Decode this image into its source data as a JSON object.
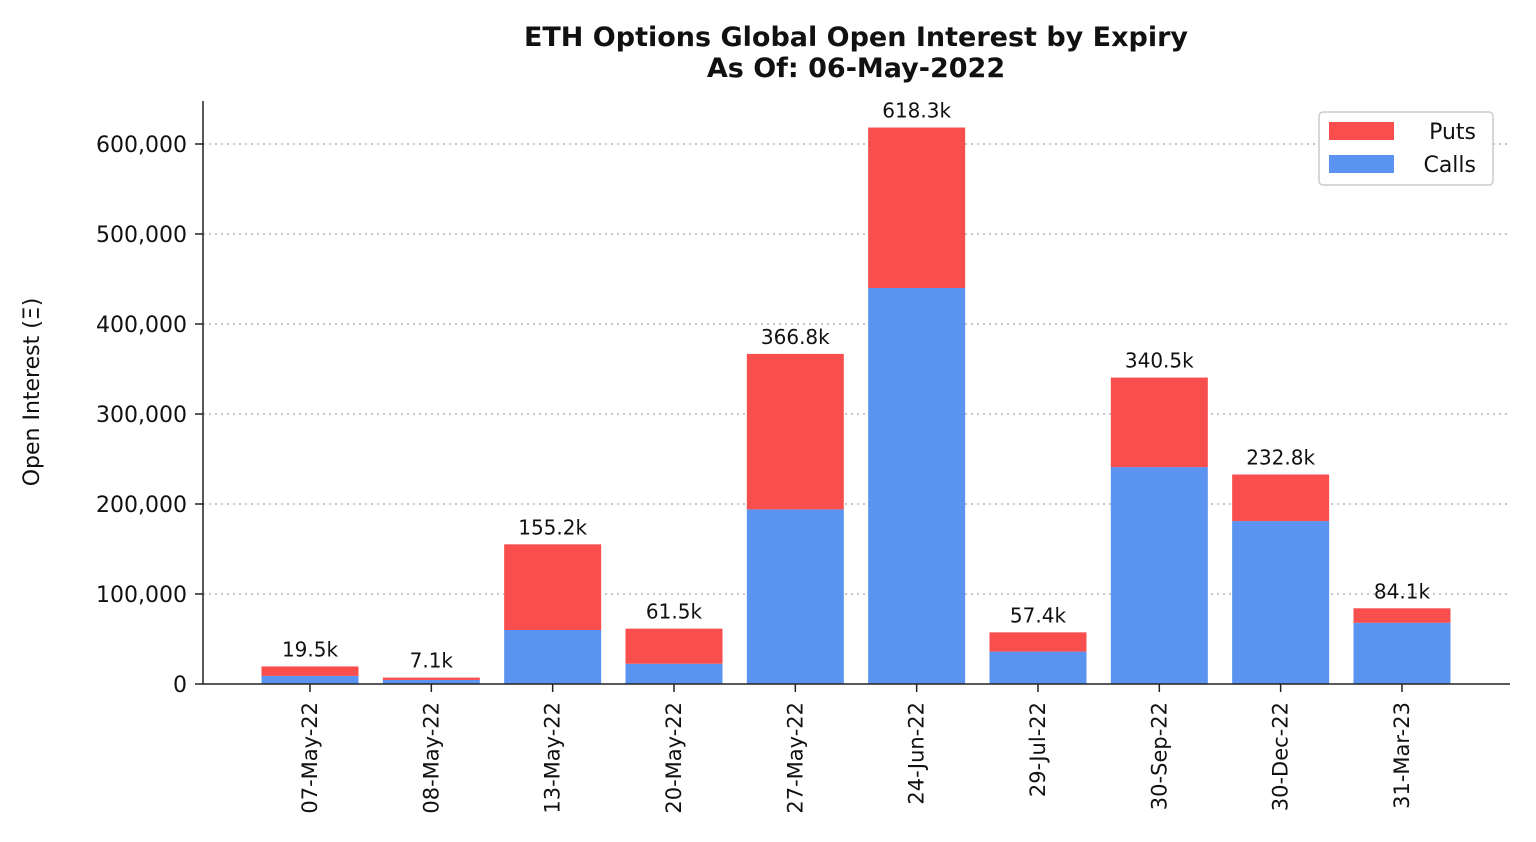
{
  "chart_data": {
    "type": "bar",
    "stacked": true,
    "title": "ETH Options Global Open Interest by Expiry",
    "subtitle": "As Of: 06-May-2022",
    "xlabel": "",
    "ylabel": "Open Interest (Ξ)",
    "ylim": [
      0,
      650000
    ],
    "yticks": [
      0,
      100000,
      200000,
      300000,
      400000,
      500000,
      600000
    ],
    "ytick_labels": [
      "0",
      "100,000",
      "200,000",
      "300,000",
      "400,000",
      "500,000",
      "600,000"
    ],
    "grid": true,
    "legend_position": "top-right",
    "categories": [
      "07-May-22",
      "08-May-22",
      "13-May-22",
      "20-May-22",
      "27-May-22",
      "24-Jun-22",
      "29-Jul-22",
      "30-Sep-22",
      "30-Dec-22",
      "31-Mar-23"
    ],
    "series": [
      {
        "name": "Calls",
        "color": "#5b93f0",
        "values": [
          9000,
          4500,
          60000,
          22500,
          194000,
          440000,
          36000,
          241000,
          181000,
          68000
        ]
      },
      {
        "name": "Puts",
        "color": "#f84e4e",
        "values": [
          10500,
          2600,
          95200,
          39000,
          172800,
          178300,
          21400,
          99500,
          51800,
          16100
        ]
      }
    ],
    "totals_labels": [
      "19.5k",
      "7.1k",
      "155.2k",
      "61.5k",
      "366.8k",
      "618.3k",
      "57.4k",
      "340.5k",
      "232.8k",
      "84.1k"
    ],
    "legend_order": [
      "Puts",
      "Calls"
    ]
  }
}
